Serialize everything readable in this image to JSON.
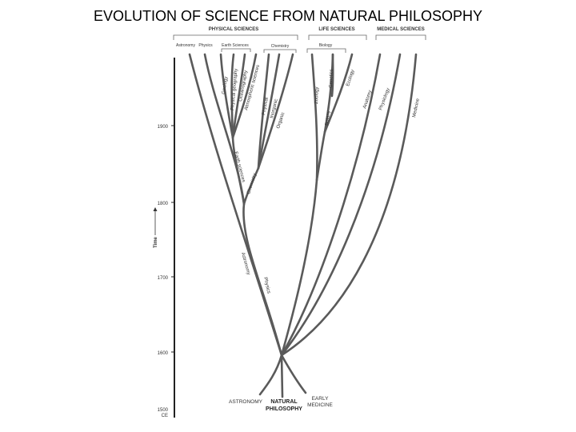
{
  "title": "EVOLUTION OF SCIENCE FROM NATURAL PHILOSOPHY",
  "groups": {
    "physical": "PHYSICAL SCIENCES",
    "life": "LIFE SCIENCES",
    "medical": "MEDICAL SCIENCES"
  },
  "subgroups": {
    "astronomy": "Astronomy",
    "physics": "Physics",
    "earth": "Earth Sciences",
    "chemistry": "Chemistry",
    "biology": "Biology"
  },
  "branches": {
    "geology": "Geology",
    "physical_geography": "Physical geography",
    "oceanography": "Oceanography",
    "atmospheric": "Atmospheric sciences",
    "physical_chem": "Physical",
    "inorganic": "Inorganic",
    "organic": "Organic",
    "zoology": "Zoology",
    "genetics": "Genetics",
    "ecology": "Ecology",
    "botany": "Botany",
    "anatomy": "Anatomy",
    "physiology": "Physiology",
    "medicine": "Medicine",
    "earth_sciences": "Earth sciences",
    "chemistry": "Chemistry",
    "astronomy": "Astronomy",
    "physics": "Physics"
  },
  "axis": {
    "label": "Time",
    "ticks": [
      "1900",
      "1800",
      "1700",
      "1600",
      "1500"
    ],
    "era": "CE"
  },
  "roots": {
    "astronomy": "ASTRONOMY",
    "natural_1": "NATURAL",
    "natural_2": "PHILOSOPHY",
    "medicine_1": "EARLY",
    "medicine_2": "MEDICINE"
  }
}
